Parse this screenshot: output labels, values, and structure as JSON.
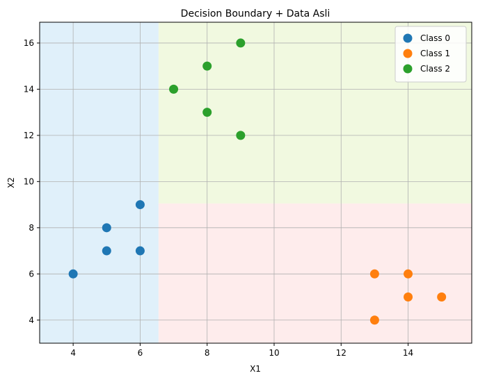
{
  "chart_data": {
    "type": "scatter",
    "title": "Decision Boundary + Data Asli",
    "xlabel": "X1",
    "ylabel": "X2",
    "xlim": [
      3,
      15.9
    ],
    "ylim": [
      3,
      16.9
    ],
    "xticks": [
      4,
      6,
      8,
      10,
      12,
      14
    ],
    "yticks": [
      4,
      6,
      8,
      10,
      12,
      14,
      16
    ],
    "grid": true,
    "legend_position": "top-right",
    "decision_regions": [
      {
        "class": "Class 0",
        "color": "#e0f0fa",
        "x_range": [
          3,
          6.55
        ],
        "y_range": [
          3,
          16.9
        ]
      },
      {
        "class": "Class 2",
        "color": "#f1f9e0",
        "x_range": [
          6.55,
          15.9
        ],
        "y_range": [
          9.05,
          16.9
        ]
      },
      {
        "class": "Class 1",
        "color": "#feecec",
        "x_range": [
          6.55,
          15.9
        ],
        "y_range": [
          3,
          9.05
        ]
      }
    ],
    "series": [
      {
        "name": "Class 0",
        "color": "#1f77b4",
        "points": [
          [
            4,
            6
          ],
          [
            5,
            8
          ],
          [
            5,
            7
          ],
          [
            6,
            9
          ],
          [
            6,
            7
          ]
        ]
      },
      {
        "name": "Class 1",
        "color": "#ff7f0e",
        "points": [
          [
            13,
            6
          ],
          [
            14,
            6
          ],
          [
            14,
            5
          ],
          [
            15,
            5
          ],
          [
            13,
            4
          ]
        ]
      },
      {
        "name": "Class 2",
        "color": "#2ca02c",
        "points": [
          [
            7,
            14
          ],
          [
            8,
            15
          ],
          [
            8,
            13
          ],
          [
            9,
            16
          ],
          [
            9,
            12
          ]
        ]
      }
    ]
  }
}
